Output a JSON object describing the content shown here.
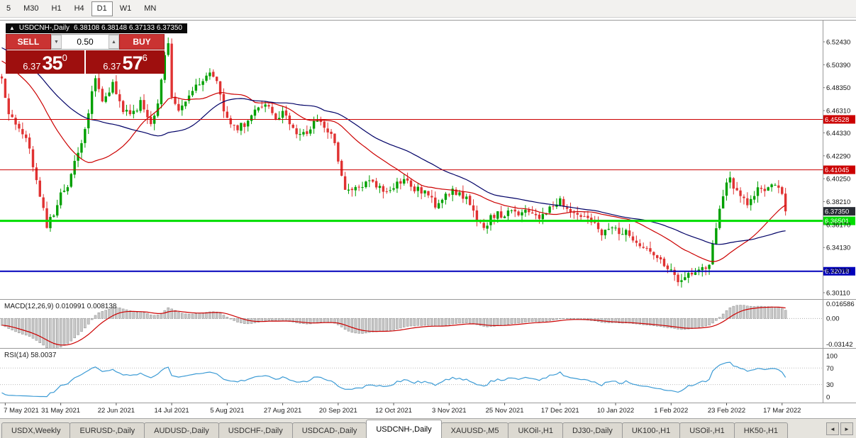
{
  "toolbar": {
    "timeframes": [
      {
        "label": "5",
        "active": false
      },
      {
        "label": "M30",
        "active": false
      },
      {
        "label": "H1",
        "active": false
      },
      {
        "label": "H4",
        "active": false
      },
      {
        "label": "D1",
        "active": true
      },
      {
        "label": "W1",
        "active": false
      },
      {
        "label": "MN",
        "active": false
      }
    ]
  },
  "symbol_header": {
    "icon": "▲",
    "title": "USDCNH-,Daily",
    "ohlc": "6.38108 6.38148 6.37133 6.37350"
  },
  "trade_widget": {
    "sell_label": "SELL",
    "buy_label": "BUY",
    "volume": "0.50",
    "dec_icon": "▼",
    "inc_icon": "▲",
    "bid": {
      "prefix": "6.37",
      "big": "35",
      "sup": "0"
    },
    "ask": {
      "prefix": "6.37",
      "big": "57",
      "sup": "6"
    }
  },
  "price_axis_labels": [
    "6.52430",
    "6.50390",
    "6.48350",
    "6.46310",
    "6.44330",
    "6.42290",
    "6.40250",
    "6.38210",
    "6.36170",
    "6.34130",
    "6.32090",
    "6.30110"
  ],
  "hlines": [
    {
      "label": "6.45528",
      "value": 6.45528,
      "color": "#cc0000",
      "thickness": 1,
      "name": "resistance-line-upper"
    },
    {
      "label": "6.41045",
      "value": 6.41045,
      "color": "#cc0000",
      "thickness": 1,
      "name": "resistance-line-lower"
    },
    {
      "label": "6.36501",
      "value": 6.36501,
      "color": "#00dd00",
      "thickness": 3,
      "name": "support-line-green"
    },
    {
      "label": "6.32018",
      "value": 6.32018,
      "color": "#0000bb",
      "thickness": 2,
      "name": "support-line-blue"
    }
  ],
  "current_price_tag": {
    "label": "6.37350",
    "value": 6.3735,
    "color": "#282c34"
  },
  "macd_panel": {
    "label": "MACD(12,26,9) 0.010991 0.008138",
    "axis_labels": [
      "0.016586",
      "0.00",
      "-0.03142"
    ]
  },
  "rsi_panel": {
    "label": "RSI(14) 58.0037",
    "axis_labels": [
      "100",
      "70",
      "30",
      "0"
    ],
    "dotted_levels": [
      70,
      30
    ]
  },
  "date_axis_labels": [
    "7 May 2021",
    "31 May 2021",
    "22 Jun 2021",
    "14 Jul 2021",
    "5 Aug 2021",
    "27 Aug 2021",
    "20 Sep 2021",
    "12 Oct 2021",
    "3 Nov 2021",
    "25 Nov 2021",
    "17 Dec 2021",
    "10 Jan 2022",
    "1 Feb 2022",
    "23 Feb 2022",
    "17 Mar 2022"
  ],
  "tabs": {
    "items": [
      "USDX,Weekly",
      "EURUSD-,Daily",
      "AUDUSD-,Daily",
      "USDCHF-,Daily",
      "USDCAD-,Daily",
      "USDCNH-,Daily",
      "XAUUSD-,M5",
      "UKOil-,H1",
      "DJ30-,Daily",
      "UK100-,H1",
      "USOil-,H1",
      "HK50-,H1"
    ],
    "active_index": 5,
    "scroll_left": "◄",
    "scroll_right": "►"
  },
  "chart_data": {
    "type": "candlestick",
    "symbol": "USDCNH-",
    "timeframe": "Daily",
    "candle_count": 227,
    "candles_per_date_tick": 16,
    "first_tick_index": 1,
    "price_range_visible": [
      6.297,
      6.543
    ],
    "last_close": 6.3735,
    "close_path_anchors": [
      [
        0,
        6.49
      ],
      [
        2,
        6.462
      ],
      [
        5,
        6.448
      ],
      [
        8,
        6.43
      ],
      [
        11,
        6.385
      ],
      [
        13,
        6.362
      ],
      [
        15,
        6.372
      ],
      [
        17,
        6.388
      ],
      [
        19,
        6.398
      ],
      [
        22,
        6.425
      ],
      [
        25,
        6.462
      ],
      [
        27,
        6.492
      ],
      [
        29,
        6.47
      ],
      [
        32,
        6.488
      ],
      [
        34,
        6.468
      ],
      [
        37,
        6.458
      ],
      [
        40,
        6.47
      ],
      [
        43,
        6.45
      ],
      [
        45,
        6.468
      ],
      [
        47,
        6.512
      ],
      [
        48,
        6.52
      ],
      [
        49,
        6.478
      ],
      [
        51,
        6.462
      ],
      [
        54,
        6.478
      ],
      [
        57,
        6.488
      ],
      [
        59,
        6.497
      ],
      [
        62,
        6.487
      ],
      [
        64,
        6.463
      ],
      [
        67,
        6.447
      ],
      [
        70,
        6.452
      ],
      [
        73,
        6.461
      ],
      [
        76,
        6.471
      ],
      [
        79,
        6.458
      ],
      [
        82,
        6.461
      ],
      [
        85,
        6.44
      ],
      [
        88,
        6.443
      ],
      [
        91,
        6.455
      ],
      [
        94,
        6.446
      ],
      [
        96,
        6.434
      ],
      [
        98,
        6.406
      ],
      [
        99,
        6.39
      ],
      [
        101,
        6.391
      ],
      [
        104,
        6.397
      ],
      [
        107,
        6.401
      ],
      [
        110,
        6.391
      ],
      [
        113,
        6.397
      ],
      [
        116,
        6.402
      ],
      [
        119,
        6.393
      ],
      [
        122,
        6.391
      ],
      [
        125,
        6.379
      ],
      [
        128,
        6.391
      ],
      [
        131,
        6.39
      ],
      [
        134,
        6.386
      ],
      [
        137,
        6.364
      ],
      [
        139,
        6.357
      ],
      [
        141,
        6.371
      ],
      [
        144,
        6.37
      ],
      [
        147,
        6.372
      ],
      [
        150,
        6.371
      ],
      [
        153,
        6.373
      ],
      [
        156,
        6.368
      ],
      [
        158,
        6.379
      ],
      [
        161,
        6.384
      ],
      [
        164,
        6.373
      ],
      [
        167,
        6.37
      ],
      [
        170,
        6.364
      ],
      [
        173,
        6.353
      ],
      [
        176,
        6.359
      ],
      [
        179,
        6.355
      ],
      [
        182,
        6.351
      ],
      [
        185,
        6.343
      ],
      [
        188,
        6.336
      ],
      [
        191,
        6.324
      ],
      [
        194,
        6.316
      ],
      [
        196,
        6.309
      ],
      [
        198,
        6.317
      ],
      [
        201,
        6.321
      ],
      [
        204,
        6.328
      ],
      [
        206,
        6.355
      ],
      [
        208,
        6.39
      ],
      [
        210,
        6.405
      ],
      [
        211,
        6.396
      ],
      [
        213,
        6.386
      ],
      [
        215,
        6.381
      ],
      [
        217,
        6.389
      ],
      [
        219,
        6.397
      ],
      [
        221,
        6.393
      ],
      [
        223,
        6.397
      ],
      [
        225,
        6.39
      ],
      [
        226,
        6.3735
      ]
    ],
    "overlays": {
      "ma_fast": {
        "type": "sma",
        "period": 25,
        "color": "#cc0000"
      },
      "ma_slow": {
        "type": "sma",
        "period": 45,
        "color": "#000066"
      }
    },
    "horizontal_levels": [
      6.45528,
      6.41045,
      6.36501,
      6.32018
    ],
    "indicators": [
      {
        "name": "MACD",
        "params": [
          12,
          26,
          9
        ],
        "values_shown": [
          0.010991,
          0.008138
        ],
        "scale": {
          "vmax": 0.0198,
          "vmin": -0.033
        }
      },
      {
        "name": "RSI",
        "params": [
          14
        ],
        "value_shown": 58.0037,
        "scale": {
          "vmax": 115,
          "vmin": -10
        }
      }
    ],
    "colors": {
      "up": "#00a000",
      "down": "#e03232",
      "macd_hist_fill": "#c9c9c9",
      "macd_hist_stroke": "#8a8a8a",
      "macd_signal": "#cc0000",
      "rsi_line": "#3c9bd5",
      "accent_red": "#ca3332",
      "price_box_red": "#9e0f0e"
    }
  }
}
